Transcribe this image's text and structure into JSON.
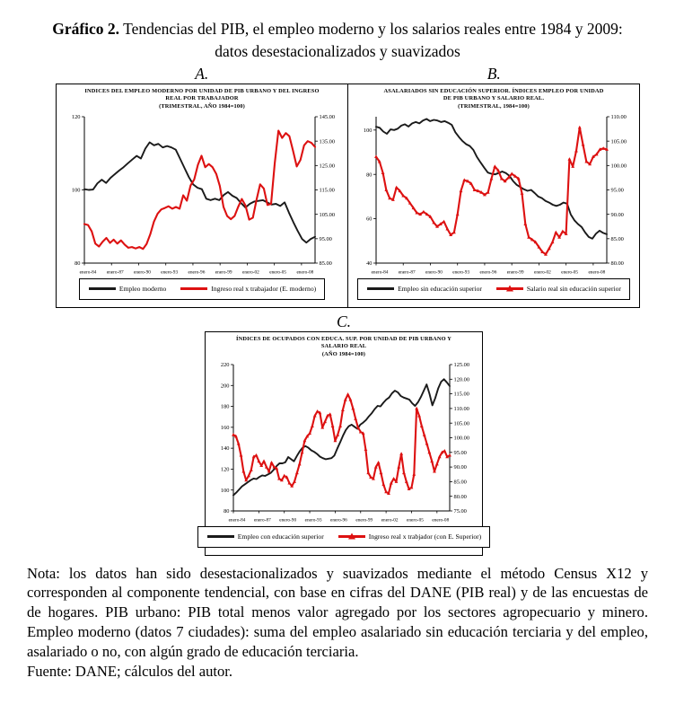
{
  "caption": {
    "lead": "Gráfico 2.",
    "text": " Tendencias del PIB, el empleo moderno y los salarios reales entre 1984 y 2009: datos desestacionalizados y suavizados"
  },
  "note": {
    "text": "Nota: los datos han sido desestacionalizados y suavizados mediante el método Census X12 y corresponden al componente tendencial, con base en cifras del DANE (PIB real) y de las encuestas de de hogares. PIB urbano: PIB total menos valor agregado por los sectores agropecuario y minero. Empleo moderno (datos 7 ciudades): suma del empleo asalariado sin educación terciaria y del empleo, asalariado o no, con algún grado de educación terciaria."
  },
  "source": {
    "text": "Fuente: DANE; cálculos del autor."
  },
  "colors": {
    "black_line": "#1a1a1a",
    "red_line": "#dd1111",
    "frame": "#000000"
  },
  "chart_data": [
    {
      "type": "line",
      "panel_label": "A.",
      "title_lines": [
        "INDICES DEL EMPLEO MODERNO POR UNIDAD DE PIB URBANO Y DEL INGRESO",
        "REAL POR TRABAJADOR",
        "(TRIMESTRAL, AÑO 1984=100)"
      ],
      "x_labels": [
        "enero-84",
        "enero-87",
        "enero-90",
        "enero-93",
        "enero-96",
        "enero-99",
        "enero-02",
        "enero-05",
        "enero-08"
      ],
      "x_span_years": 25.5,
      "x_label_step_years": 3,
      "left_axis": {
        "min": 80,
        "max": 120,
        "ticks": [
          80,
          100,
          120
        ],
        "format": "int"
      },
      "right_axis": {
        "min": 85,
        "max": 145,
        "ticks": [
          85,
          95,
          105,
          115,
          125,
          135,
          145
        ],
        "format": "2dp"
      },
      "grid": false,
      "legend_position": "bottom",
      "series": [
        {
          "name": "Empleo moderno",
          "color": "#1a1a1a",
          "axis": "left",
          "markers": false,
          "values": [
            100.2,
            100.0,
            100.1,
            101.8,
            102.8,
            101.9,
            103.3,
            104.3,
            105.3,
            106.2,
            107.3,
            108.3,
            109.3,
            108.6,
            111.3,
            113.0,
            112.2,
            112.6,
            111.6,
            112.0,
            111.6,
            111.0,
            108.5,
            106.0,
            103.5,
            101.5,
            100.6,
            100.2,
            97.6,
            97.2,
            97.6,
            97.2,
            98.6,
            99.4,
            98.4,
            97.8,
            96.4,
            95.2,
            96.2,
            96.8,
            97.0,
            97.2,
            96.6,
            96.0,
            96.2,
            95.6,
            96.6,
            93.8,
            91.2,
            88.8,
            86.6,
            85.6,
            86.6,
            87.2
          ]
        },
        {
          "name": "Ingreso real x trabajador (E. moderno)",
          "color": "#dd1111",
          "axis": "right",
          "markers": false,
          "values": [
            101.0,
            100.6,
            98.0,
            93.0,
            91.8,
            93.8,
            95.3,
            93.3,
            94.6,
            93.0,
            94.3,
            92.6,
            91.3,
            91.6,
            91.0,
            91.6,
            90.8,
            92.8,
            96.8,
            102.0,
            105.3,
            107.0,
            107.6,
            108.3,
            107.3,
            108.0,
            107.3,
            112.8,
            110.6,
            116.8,
            119.3,
            125.3,
            129.0,
            124.3,
            125.6,
            124.3,
            121.6,
            116.6,
            108.0,
            104.3,
            103.0,
            104.3,
            108.0,
            111.3,
            108.6,
            102.8,
            103.6,
            110.8,
            117.3,
            115.6,
            108.8,
            109.3,
            126.0,
            139.3,
            136.3,
            138.3,
            137.0,
            131.0,
            124.6,
            127.3,
            133.3,
            135.0,
            134.3,
            132.6
          ]
        }
      ]
    },
    {
      "type": "line",
      "panel_label": "B.",
      "title_lines": [
        "ASALARIADOS SIN EDUCACIÓN SUPERIOR. ÍNDICES EMPLEO POR UNIDAD",
        "DE PIB URBANO Y SALARIO REAL.",
        "(TRIMESTRAL, 1984=100)"
      ],
      "x_labels": [
        "enero-84",
        "enero-87",
        "enero-90",
        "enero-93",
        "enero-96",
        "enero-99",
        "enero-02",
        "enero-05",
        "enero-08"
      ],
      "x_span_years": 25.5,
      "x_label_step_years": 3,
      "left_axis": {
        "min": 40,
        "max": 106,
        "ticks": [
          40,
          60,
          80,
          100
        ],
        "format": "int"
      },
      "right_axis": {
        "min": 80,
        "max": 110,
        "ticks": [
          80,
          85,
          90,
          95,
          100,
          105,
          110
        ],
        "format": "2dp"
      },
      "grid": false,
      "legend_position": "bottom",
      "series": [
        {
          "name": "Empleo sin educación superior",
          "color": "#1a1a1a",
          "axis": "left",
          "markers": false,
          "values": [
            101.5,
            101.0,
            99.3,
            98.3,
            100.3,
            100.0,
            100.6,
            102.0,
            102.6,
            101.6,
            103.0,
            103.6,
            103.0,
            104.3,
            105.0,
            104.0,
            104.6,
            104.3,
            103.6,
            104.0,
            103.3,
            102.3,
            99.0,
            96.8,
            95.0,
            93.6,
            92.8,
            91.0,
            87.8,
            85.3,
            83.0,
            80.8,
            80.3,
            80.0,
            80.6,
            81.3,
            80.6,
            79.3,
            77.0,
            75.3,
            74.3,
            73.3,
            72.6,
            73.0,
            71.6,
            70.0,
            69.3,
            68.0,
            67.3,
            66.3,
            65.8,
            66.3,
            67.3,
            66.8,
            62.0,
            59.3,
            57.6,
            56.3,
            53.8,
            51.8,
            51.0,
            53.3,
            54.6,
            53.6,
            53.0
          ]
        },
        {
          "name": "Salario real sin educación superior",
          "color": "#dd1111",
          "axis": "right",
          "markers": true,
          "values": [
            101.8,
            100.8,
            98.5,
            95.0,
            93.3,
            93.0,
            95.5,
            94.8,
            93.8,
            93.3,
            92.3,
            91.3,
            90.3,
            90.0,
            90.5,
            90.0,
            89.5,
            88.3,
            87.5,
            88.0,
            88.5,
            87.0,
            85.8,
            86.3,
            90.0,
            94.8,
            97.0,
            96.8,
            96.3,
            95.0,
            94.8,
            94.5,
            94.0,
            94.5,
            97.3,
            99.8,
            99.0,
            97.3,
            96.8,
            97.5,
            98.3,
            97.8,
            97.3,
            94.3,
            88.0,
            85.3,
            84.8,
            84.3,
            83.3,
            82.3,
            81.8,
            83.0,
            84.3,
            86.3,
            85.3,
            86.5,
            86.0,
            101.3,
            99.8,
            103.0,
            107.8,
            104.3,
            100.8,
            100.3,
            101.8,
            102.3,
            103.3,
            103.5,
            103.3
          ]
        }
      ]
    },
    {
      "type": "line",
      "panel_label": "C.",
      "title_lines": [
        "ÍNDICES DE OCUPADOS CON EDUCA. SUP. POR UNIDAD DE PIB URBANO Y",
        "SALARIO REAL",
        "(AÑO 1984=100)"
      ],
      "x_labels": [
        "enero-84",
        "enero-87",
        "enero-90",
        "enero-93",
        "enero-96",
        "enero-99",
        "enero-02",
        "enero-05",
        "enero-08"
      ],
      "x_span_years": 25.5,
      "x_label_step_years": 3,
      "left_axis": {
        "min": 80,
        "max": 220,
        "ticks": [
          80,
          100,
          120,
          140,
          160,
          180,
          200,
          220
        ],
        "format": "int"
      },
      "right_axis": {
        "min": 75,
        "max": 125,
        "ticks": [
          75,
          80,
          85,
          90,
          95,
          100,
          105,
          110,
          115,
          120,
          125
        ],
        "format": "2dp"
      },
      "grid": false,
      "legend_position": "bottom",
      "series": [
        {
          "name": "Empleo con educación superior",
          "color": "#1a1a1a",
          "axis": "left",
          "markers": false,
          "values": [
            95.0,
            97.5,
            100.5,
            103.5,
            105.5,
            107.5,
            109.5,
            111.0,
            110.5,
            112.5,
            114.0,
            113.5,
            115.0,
            116.5,
            119.5,
            123.0,
            125.5,
            125.5,
            126.5,
            131.5,
            129.5,
            127.5,
            132.5,
            137.0,
            140.5,
            142.0,
            140.5,
            138.0,
            136.5,
            134.5,
            132.0,
            130.5,
            129.5,
            130.0,
            130.5,
            133.0,
            139.5,
            145.5,
            152.0,
            157.5,
            161.0,
            162.5,
            160.5,
            158.5,
            162.5,
            164.5,
            167.0,
            170.5,
            173.5,
            177.5,
            180.5,
            180.0,
            183.5,
            186.5,
            188.5,
            192.5,
            195.0,
            193.5,
            190.0,
            188.5,
            187.5,
            186.5,
            183.0,
            180.5,
            184.0,
            189.0,
            195.0,
            201.0,
            192.0,
            181.0,
            188.0,
            197.0,
            203.5,
            206.0,
            203.0,
            199.5
          ]
        },
        {
          "name": "Ingreso real x trabjador (con E. Superior)",
          "color": "#dd1111",
          "axis": "right",
          "markers": true,
          "values": [
            101.0,
            100.5,
            98.0,
            94.0,
            88.5,
            85.5,
            87.0,
            89.0,
            93.5,
            94.0,
            92.0,
            90.5,
            92.0,
            90.0,
            88.5,
            91.5,
            90.0,
            89.5,
            86.0,
            85.5,
            87.0,
            86.5,
            84.5,
            83.5,
            85.0,
            88.0,
            91.0,
            95.0,
            99.0,
            100.5,
            101.5,
            104.0,
            107.5,
            109.0,
            108.5,
            103.5,
            105.5,
            107.5,
            108.0,
            104.0,
            99.0,
            101.0,
            104.0,
            109.5,
            113.0,
            114.8,
            113.0,
            110.0,
            106.5,
            103.5,
            102.0,
            101.5,
            96.0,
            88.0,
            86.5,
            86.0,
            90.0,
            91.5,
            88.0,
            84.0,
            81.5,
            81.0,
            84.5,
            86.0,
            85.0,
            90.0,
            94.5,
            88.0,
            85.0,
            82.5,
            83.0,
            87.5,
            110.0,
            107.5,
            104.0,
            101.0,
            98.0,
            95.0,
            92.0,
            88.5,
            91.0,
            93.5,
            95.0,
            95.5,
            93.5,
            94.0
          ]
        }
      ]
    }
  ]
}
